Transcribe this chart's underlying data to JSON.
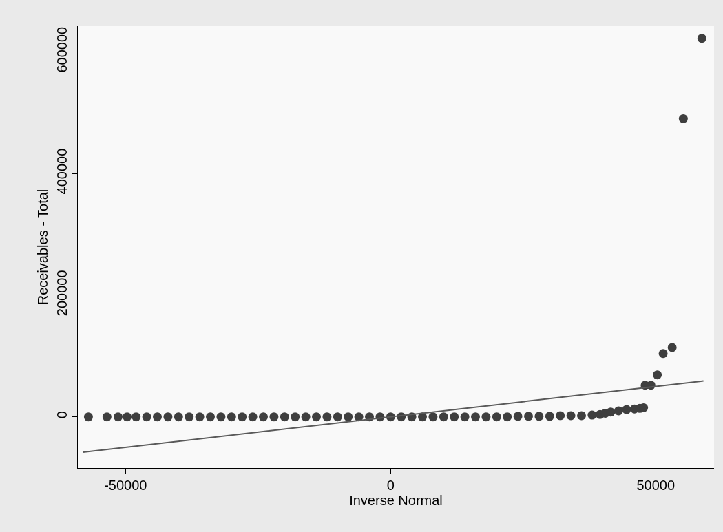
{
  "chart_data": {
    "type": "scatter",
    "xlabel": "Inverse Normal",
    "ylabel": "Receivables - Total",
    "xlim": [
      -59000,
      61000
    ],
    "ylim": [
      -84000,
      642000
    ],
    "xticks": [
      -50000,
      0,
      50000
    ],
    "yticks": [
      0,
      200000,
      400000,
      600000
    ],
    "grid": false,
    "marker": "circle",
    "series": [
      {
        "color": "#3f3f3f",
        "x": [
          -57000,
          -53500,
          -51400,
          -49700,
          -48000,
          -46000,
          -44000,
          -42000,
          -40000,
          -38000,
          -36000,
          -34000,
          -32000,
          -30000,
          -28000,
          -26000,
          -24000,
          -22000,
          -20000,
          -18000,
          -16000,
          -14000,
          -12000,
          -10000,
          -8000,
          -6000,
          -4000,
          -2000,
          0,
          2000,
          4000,
          6000,
          8000,
          10000,
          12000,
          14000,
          16000,
          18000,
          20000,
          22000,
          24000,
          26000,
          28000,
          30000,
          32000,
          34000,
          36000,
          38000,
          39500,
          40500,
          41500,
          43000,
          44500,
          46000,
          47000,
          47700,
          48000,
          49100,
          50300,
          51400,
          53100,
          55200,
          58700
        ],
        "values": [
          0,
          0,
          0,
          0,
          0,
          0,
          0,
          0,
          0,
          0,
          0,
          0,
          0,
          0,
          0,
          0,
          0,
          0,
          0,
          0,
          0,
          0,
          0,
          0,
          0,
          0,
          0,
          0,
          0,
          0,
          0,
          0,
          0,
          0,
          0,
          0,
          0,
          0,
          0,
          0,
          1000,
          1000,
          1000,
          1000,
          2000,
          2000,
          2000,
          3000,
          4000,
          6000,
          8000,
          10000,
          12000,
          13000,
          14000,
          15000,
          52000,
          52000,
          69000,
          104000,
          114000,
          490000,
          622000
        ]
      },
      {
        "type": "line",
        "color": "#595959",
        "marker": "none",
        "x": [
          -58000,
          59000
        ],
        "values": [
          -58000,
          59000
        ]
      }
    ]
  }
}
